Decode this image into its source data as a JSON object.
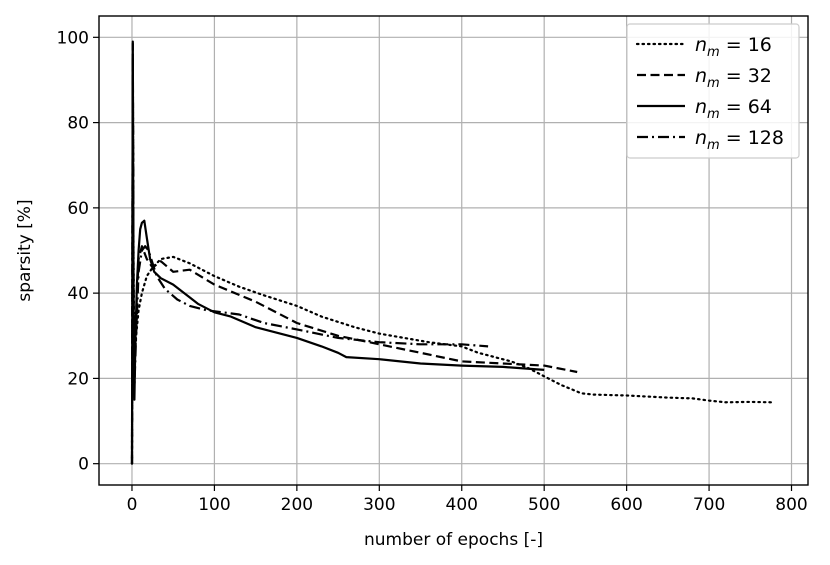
{
  "chart_data": {
    "type": "line",
    "title": "",
    "xlabel": "number of epochs [-]",
    "ylabel": "sparsity [%]",
    "xlim": [
      -40,
      820
    ],
    "ylim": [
      -5,
      105
    ],
    "xticks": [
      0,
      100,
      200,
      300,
      400,
      500,
      600,
      700,
      800
    ],
    "yticks": [
      0,
      20,
      40,
      60,
      80,
      100
    ],
    "grid": true,
    "legend": "top-right",
    "series": [
      {
        "name": "n_m = 16",
        "legend_label": {
          "base": "n",
          "sub": "m",
          "rest": " = 16"
        },
        "style": "dotted",
        "color": "#000000",
        "x": [
          0,
          1,
          2,
          3,
          5,
          8,
          12,
          18,
          25,
          35,
          50,
          70,
          100,
          130,
          160,
          200,
          230,
          270,
          300,
          330,
          360,
          400,
          420,
          440,
          460,
          480,
          500,
          520,
          545,
          560,
          600,
          650,
          680,
          700,
          720,
          750,
          775
        ],
        "y": [
          0,
          90,
          45,
          22,
          30,
          36,
          40,
          44,
          46,
          48,
          48.5,
          47,
          44,
          41.5,
          39.5,
          37,
          34.5,
          32,
          30.5,
          29.5,
          28.5,
          27.5,
          26,
          25,
          24,
          22.5,
          20.5,
          18.5,
          16.5,
          16.2,
          16,
          15.5,
          15.3,
          14.8,
          14.4,
          14.5,
          14.4
        ]
      },
      {
        "name": "n_m = 32",
        "legend_label": {
          "base": "n",
          "sub": "m",
          "rest": " = 32"
        },
        "style": "dashed",
        "color": "#000000",
        "x": [
          0,
          1,
          2,
          3,
          5,
          8,
          12,
          18,
          25,
          35,
          50,
          70,
          100,
          150,
          200,
          250,
          300,
          350,
          400,
          450,
          500,
          540
        ],
        "y": [
          0,
          95,
          40,
          20,
          35,
          48,
          51,
          48,
          46,
          47.5,
          45,
          45.5,
          42,
          38,
          33,
          30,
          28,
          26,
          24,
          23.5,
          23,
          21.5
        ]
      },
      {
        "name": "n_m = 64",
        "legend_label": {
          "base": "n",
          "sub": "m",
          "rest": " = 64"
        },
        "style": "solid",
        "color": "#000000",
        "x": [
          0,
          1,
          2,
          3,
          4,
          6,
          8,
          10,
          12,
          15,
          18,
          22,
          27,
          35,
          50,
          70,
          80,
          100,
          120,
          150,
          200,
          230,
          250,
          260,
          300,
          350,
          400,
          450,
          500
        ],
        "y": [
          0,
          98.5,
          30,
          15,
          28,
          42,
          50,
          55,
          56.5,
          57,
          53,
          48,
          45,
          43.5,
          42,
          39,
          37.5,
          35.5,
          34.5,
          32,
          29.5,
          27.5,
          26,
          25,
          24.5,
          23.5,
          23,
          22.7,
          22
        ]
      },
      {
        "name": "n_m = 128",
        "legend_label": {
          "base": "n",
          "sub": "m",
          "rest": " = 128"
        },
        "style": "dashdot",
        "color": "#000000",
        "x": [
          0,
          1,
          2,
          3,
          5,
          8,
          12,
          16,
          20,
          25,
          30,
          40,
          55,
          70,
          90,
          110,
          130,
          160,
          200,
          250,
          300,
          350,
          400,
          432
        ],
        "y": [
          0,
          99,
          35,
          18,
          30,
          45,
          50,
          51,
          50,
          47,
          44,
          41,
          38.5,
          37,
          36,
          35.5,
          35,
          33,
          31.5,
          29.5,
          28.5,
          28,
          28,
          27.5
        ]
      }
    ]
  }
}
